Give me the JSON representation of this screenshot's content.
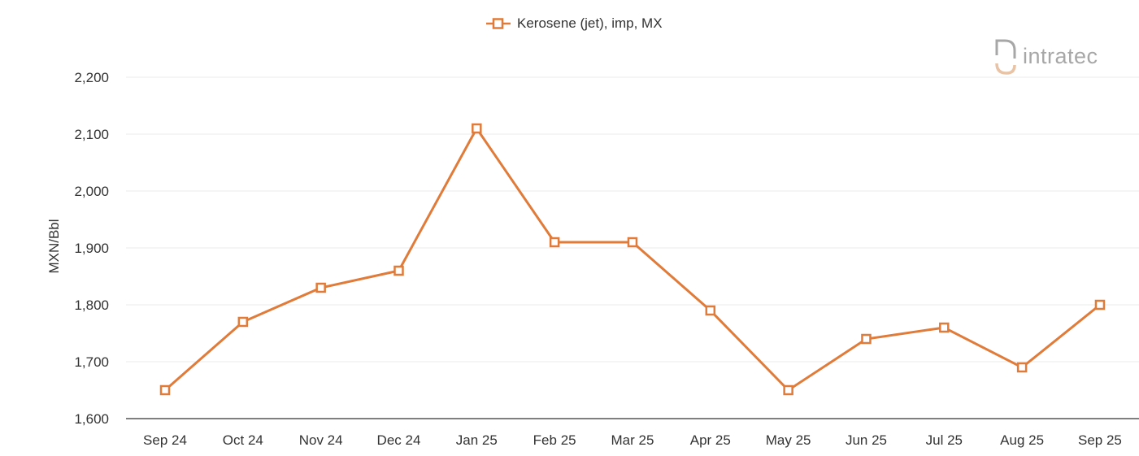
{
  "chart_data": {
    "type": "line",
    "title": "",
    "xlabel": "",
    "ylabel": "MXN/Bbl",
    "categories": [
      "Sep 24",
      "Oct 24",
      "Nov 24",
      "Dec 24",
      "Jan 25",
      "Feb 25",
      "Mar 25",
      "Apr 25",
      "May 25",
      "Jun 25",
      "Jul 25",
      "Aug 25",
      "Sep 25"
    ],
    "series": [
      {
        "name": "Kerosene (jet), imp, MX",
        "values": [
          1650,
          1770,
          1830,
          1860,
          2110,
          1910,
          1910,
          1790,
          1650,
          1740,
          1760,
          1690,
          1800
        ]
      }
    ],
    "ylim": [
      1600,
      2200
    ],
    "yticks": [
      1600,
      1700,
      1800,
      1900,
      2000,
      2100,
      2200
    ],
    "ytick_labels": [
      "1,600",
      "1,700",
      "1,800",
      "1,900",
      "2,000",
      "2,100",
      "2,200"
    ],
    "grid": true,
    "legend_position": "top-center",
    "line_color": "#e07b39",
    "marker": "hollow-square"
  },
  "watermark": {
    "text": "intratec"
  }
}
